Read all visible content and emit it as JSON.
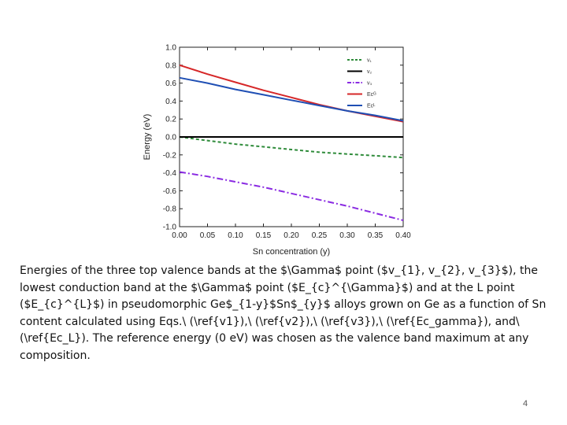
{
  "chart_data": {
    "type": "line",
    "title": "",
    "xlabel": "Sn concentration (y)",
    "ylabel": "Energy (eV)",
    "xlim": [
      0.0,
      0.4
    ],
    "ylim": [
      -1.0,
      1.0
    ],
    "xticks": [
      "0.00",
      "0.05",
      "0.10",
      "0.15",
      "0.20",
      "0.25",
      "0.30",
      "0.35",
      "0.40"
    ],
    "yticks": [
      "1.0",
      "0.8",
      "0.6",
      "0.4",
      "0.2",
      "0.0",
      "-0.2",
      "-0.4",
      "-0.6",
      "-0.8",
      "-1.0"
    ],
    "grid": false,
    "legend": "top-right",
    "series": [
      {
        "name": "v₁",
        "color": "#2e8b3a",
        "dash": "short-dash",
        "x": [
          0.0,
          0.05,
          0.1,
          0.15,
          0.2,
          0.25,
          0.3,
          0.35,
          0.4
        ],
        "y": [
          0.0,
          -0.04,
          -0.08,
          -0.11,
          -0.14,
          -0.17,
          -0.19,
          -0.21,
          -0.23
        ]
      },
      {
        "name": "v₂",
        "color": "#000000",
        "dash": "solid",
        "x": [
          0.0,
          0.4
        ],
        "y": [
          0.0,
          0.0
        ]
      },
      {
        "name": "v₃",
        "color": "#8a2be2",
        "dash": "dash-dot",
        "x": [
          0.0,
          0.05,
          0.1,
          0.15,
          0.2,
          0.25,
          0.3,
          0.35,
          0.4
        ],
        "y": [
          -0.39,
          -0.44,
          -0.5,
          -0.56,
          -0.63,
          -0.7,
          -0.77,
          -0.85,
          -0.93
        ]
      },
      {
        "name": "Eᴄᴳ",
        "color": "#d62728",
        "dash": "solid",
        "x": [
          0.0,
          0.05,
          0.1,
          0.15,
          0.2,
          0.25,
          0.3,
          0.35,
          0.4
        ],
        "y": [
          0.8,
          0.7,
          0.61,
          0.52,
          0.44,
          0.36,
          0.29,
          0.23,
          0.17
        ]
      },
      {
        "name": "Eᴄᴸ",
        "color": "#1f4fb4",
        "dash": "solid",
        "x": [
          0.0,
          0.05,
          0.1,
          0.15,
          0.2,
          0.25,
          0.3,
          0.35,
          0.4
        ],
        "y": [
          0.66,
          0.6,
          0.53,
          0.47,
          0.41,
          0.35,
          0.29,
          0.24,
          0.18
        ]
      }
    ]
  },
  "caption": "Energies of the three top valence bands at the $\\Gamma$ point ($v_{1}, v_{2}, v_{3}$), the lowest conduction band at the $\\Gamma$ point ($E_{c}^{\\Gamma}$) and at the L point ($E_{c}^{L}$) in pseudomorphic Ge$_{1-y}$Sn$_{y}$ alloys grown on Ge as a function of Sn content calculated using Eqs.\\ (\\ref{v1}),\\ (\\ref{v2}),\\ (\\ref{v3}),\\ (\\ref{Ec_gamma}), and\\ (\\ref{Ec_L}). The reference energy (0 eV) was chosen as the valence band maximum at any composition.",
  "page_number": "4"
}
